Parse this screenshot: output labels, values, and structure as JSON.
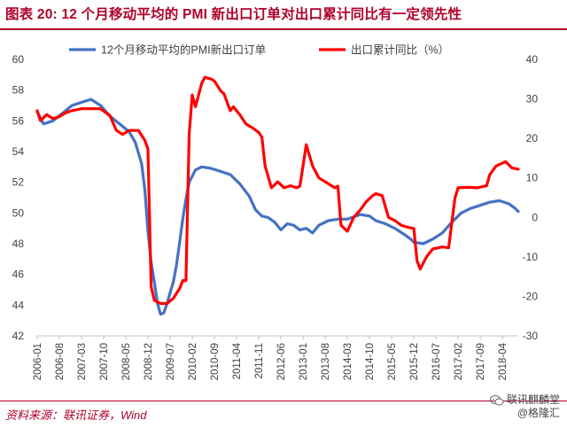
{
  "header": {
    "title": "图表 20: 12 个月移动平均的 PMI 新出口订单对出口累计同比有一定领先性"
  },
  "footer": {
    "source": "资料来源：联讯证券，Wind"
  },
  "watermark": {
    "line1": "联讯麒麟堂",
    "line2": "@格隆汇",
    "icon": "wechat-icon"
  },
  "chart_data": {
    "type": "line",
    "title": "",
    "xlabel": "",
    "ylabel": "",
    "x_ticks": [
      "2006-01",
      "2006-08",
      "2007-03",
      "2007-10",
      "2008-05",
      "2008-12",
      "2009-07",
      "2010-02",
      "2010-09",
      "2011-04",
      "2011-11",
      "2012-06",
      "2013-01",
      "2013-08",
      "2014-03",
      "2014-10",
      "2015-05",
      "2015-12",
      "2016-07",
      "2017-02",
      "2017-09",
      "2018-04"
    ],
    "x_range": [
      "2006-01",
      "2018-09"
    ],
    "y_left": {
      "min": 42,
      "max": 60,
      "step": 2,
      "ticks": [
        "42",
        "44",
        "46",
        "48",
        "50",
        "52",
        "54",
        "56",
        "58",
        "60"
      ]
    },
    "y_right": {
      "min": -30,
      "max": 40,
      "step": 10,
      "ticks": [
        "-30",
        "-20",
        "-10",
        "0",
        "10",
        "20",
        "30",
        "40"
      ]
    },
    "legend_position": "top",
    "grid": false,
    "series": [
      {
        "name": "12个月移动平均的PMI新出口订单",
        "axis": "left",
        "color": "#4472c4",
        "points": [
          [
            "2006-01",
            56.6
          ],
          [
            "2006-03",
            55.8
          ],
          [
            "2006-06",
            56.0
          ],
          [
            "2006-09",
            56.5
          ],
          [
            "2006-12",
            57.0
          ],
          [
            "2007-03",
            57.2
          ],
          [
            "2007-06",
            57.4
          ],
          [
            "2007-09",
            57.0
          ],
          [
            "2007-12",
            56.3
          ],
          [
            "2008-03",
            55.8
          ],
          [
            "2008-06",
            55.3
          ],
          [
            "2008-08",
            54.6
          ],
          [
            "2008-10",
            53.2
          ],
          [
            "2008-11",
            51.5
          ],
          [
            "2008-12",
            48.8
          ],
          [
            "2009-01",
            46.8
          ],
          [
            "2009-02",
            45.5
          ],
          [
            "2009-03",
            44.1
          ],
          [
            "2009-04",
            43.4
          ],
          [
            "2009-05",
            43.5
          ],
          [
            "2009-06",
            44.1
          ],
          [
            "2009-07",
            44.8
          ],
          [
            "2009-08",
            45.5
          ],
          [
            "2009-09",
            46.6
          ],
          [
            "2009-10",
            48.1
          ],
          [
            "2009-11",
            49.6
          ],
          [
            "2009-12",
            50.9
          ],
          [
            "2010-01",
            52.0
          ],
          [
            "2010-03",
            52.8
          ],
          [
            "2010-05",
            53.0
          ],
          [
            "2010-08",
            52.9
          ],
          [
            "2010-11",
            52.7
          ],
          [
            "2011-02",
            52.5
          ],
          [
            "2011-05",
            51.9
          ],
          [
            "2011-08",
            51.1
          ],
          [
            "2011-10",
            50.2
          ],
          [
            "2011-12",
            49.8
          ],
          [
            "2012-02",
            49.7
          ],
          [
            "2012-04",
            49.4
          ],
          [
            "2012-06",
            48.9
          ],
          [
            "2012-08",
            49.3
          ],
          [
            "2012-10",
            49.2
          ],
          [
            "2012-12",
            48.9
          ],
          [
            "2013-02",
            49.0
          ],
          [
            "2013-04",
            48.7
          ],
          [
            "2013-06",
            49.2
          ],
          [
            "2013-09",
            49.5
          ],
          [
            "2013-12",
            49.6
          ],
          [
            "2014-03",
            49.6
          ],
          [
            "2014-07",
            49.9
          ],
          [
            "2014-10",
            49.8
          ],
          [
            "2014-12",
            49.5
          ],
          [
            "2015-03",
            49.3
          ],
          [
            "2015-06",
            49.0
          ],
          [
            "2015-09",
            48.6
          ],
          [
            "2015-11",
            48.3
          ],
          [
            "2015-12",
            48.1
          ],
          [
            "2016-03",
            48.0
          ],
          [
            "2016-06",
            48.3
          ],
          [
            "2016-09",
            48.7
          ],
          [
            "2016-12",
            49.4
          ],
          [
            "2017-03",
            50.0
          ],
          [
            "2017-06",
            50.3
          ],
          [
            "2017-09",
            50.5
          ],
          [
            "2017-12",
            50.7
          ],
          [
            "2018-03",
            50.8
          ],
          [
            "2018-06",
            50.6
          ],
          [
            "2018-08",
            50.3
          ],
          [
            "2018-09",
            50.1
          ]
        ]
      },
      {
        "name": "出口累计同比（%）",
        "axis": "right",
        "color": "#ff0000",
        "points": [
          [
            "2006-01",
            27
          ],
          [
            "2006-02",
            24.5
          ],
          [
            "2006-04",
            26
          ],
          [
            "2006-06",
            25
          ],
          [
            "2006-08",
            25.5
          ],
          [
            "2006-10",
            26.5
          ],
          [
            "2006-12",
            27
          ],
          [
            "2007-03",
            27.5
          ],
          [
            "2007-06",
            27.5
          ],
          [
            "2007-09",
            27.5
          ],
          [
            "2007-12",
            25.7
          ],
          [
            "2008-02",
            22
          ],
          [
            "2008-04",
            21
          ],
          [
            "2008-06",
            22
          ],
          [
            "2008-09",
            22
          ],
          [
            "2008-11",
            19.5
          ],
          [
            "2008-12",
            17.3
          ],
          [
            "2009-01",
            -17.5
          ],
          [
            "2009-02",
            -21
          ],
          [
            "2009-04",
            -21.8
          ],
          [
            "2009-06",
            -21.8
          ],
          [
            "2009-08",
            -20.5
          ],
          [
            "2009-10",
            -18
          ],
          [
            "2009-11",
            -16
          ],
          [
            "2009-12",
            -16
          ],
          [
            "2010-01",
            21
          ],
          [
            "2010-02",
            31
          ],
          [
            "2010-03",
            28
          ],
          [
            "2010-05",
            34
          ],
          [
            "2010-06",
            35.5
          ],
          [
            "2010-08",
            35
          ],
          [
            "2010-09",
            34.5
          ],
          [
            "2010-11",
            32
          ],
          [
            "2010-12",
            31.3
          ],
          [
            "2011-02",
            27
          ],
          [
            "2011-03",
            28
          ],
          [
            "2011-05",
            26
          ],
          [
            "2011-07",
            23.6
          ],
          [
            "2011-09",
            22.7
          ],
          [
            "2011-11",
            21.5
          ],
          [
            "2011-12",
            20.3
          ],
          [
            "2012-01",
            13
          ],
          [
            "2012-03",
            7.5
          ],
          [
            "2012-05",
            9
          ],
          [
            "2012-07",
            7.5
          ],
          [
            "2012-09",
            8
          ],
          [
            "2012-11",
            7.5
          ],
          [
            "2012-12",
            7.9
          ],
          [
            "2013-02",
            18.4
          ],
          [
            "2013-04",
            13
          ],
          [
            "2013-06",
            10
          ],
          [
            "2013-09",
            8.5
          ],
          [
            "2013-11",
            7.5
          ],
          [
            "2013-12",
            7.9
          ],
          [
            "2014-01",
            -2
          ],
          [
            "2014-03",
            -3.5
          ],
          [
            "2014-05",
            0
          ],
          [
            "2014-07",
            1.8
          ],
          [
            "2014-09",
            4
          ],
          [
            "2014-11",
            5.5
          ],
          [
            "2014-12",
            6
          ],
          [
            "2015-02",
            5.5
          ],
          [
            "2015-04",
            0
          ],
          [
            "2015-06",
            -0.8
          ],
          [
            "2015-08",
            -2
          ],
          [
            "2015-10",
            -2.5
          ],
          [
            "2015-12",
            -2.8
          ],
          [
            "2016-01",
            -11
          ],
          [
            "2016-02",
            -13.1
          ],
          [
            "2016-04",
            -10
          ],
          [
            "2016-06",
            -8
          ],
          [
            "2016-09",
            -7.5
          ],
          [
            "2016-11",
            -7.7
          ],
          [
            "2017-01",
            5
          ],
          [
            "2017-02",
            7.5
          ],
          [
            "2017-05",
            7.6
          ],
          [
            "2017-08",
            7.5
          ],
          [
            "2017-11",
            8
          ],
          [
            "2017-12",
            10.8
          ],
          [
            "2018-02",
            13
          ],
          [
            "2018-05",
            14.1
          ],
          [
            "2018-07",
            12.5
          ],
          [
            "2018-09",
            12.2
          ]
        ]
      }
    ]
  }
}
